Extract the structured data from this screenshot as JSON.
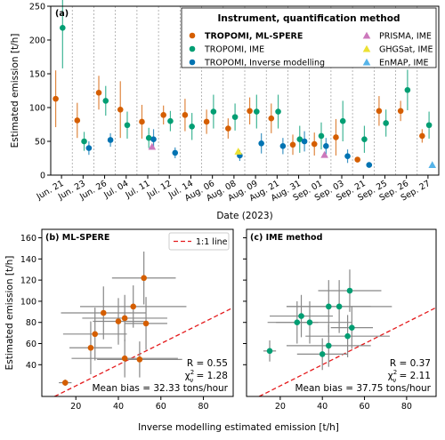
{
  "chart_data": [
    {
      "type": "errorbar",
      "panel_label": "(a)",
      "x_label": "Date (2023)",
      "y_label": "Estimated emission [t/h]",
      "categories": [
        "Jun. 21",
        "Jun. 23",
        "Jun. 26",
        "Jul. 04",
        "Jul. 11",
        "Jul. 12",
        "Jul. 14",
        "Aug. 06",
        "Aug. 08",
        "Aug. 09",
        "Aug. 21",
        "Aug. 31",
        "Sep. 01",
        "Sep. 03",
        "Sep. 21",
        "Sep. 25",
        "Sep. 26",
        "Sep. 27"
      ],
      "ylim": [
        0,
        250
      ],
      "yticks": [
        0,
        50,
        100,
        150,
        200,
        250
      ],
      "grid": "category-dashed",
      "legend_title": "Instrument, quantification method",
      "legend": "upper right",
      "series": [
        {
          "name": "TROPOMI, ML-SPERE",
          "color": "#d55e00",
          "marker": "circle",
          "values": [
            113,
            81,
            122,
            97,
            79,
            89,
            89,
            79,
            69,
            95,
            84,
            45,
            46,
            56,
            23,
            95,
            95,
            58
          ],
          "errors": [
            42,
            26,
            25,
            42,
            25,
            14,
            24,
            18,
            15,
            20,
            22,
            15,
            17,
            27,
            3,
            22,
            15,
            10
          ]
        },
        {
          "name": "TROPOMI, IME",
          "color": "#029e73",
          "marker": "circle",
          "values": [
            218,
            50,
            110,
            74,
            55,
            80,
            72,
            94,
            86,
            94,
            94,
            53,
            58,
            80,
            53,
            77,
            126,
            74
          ],
          "errors": [
            60,
            14,
            22,
            20,
            15,
            15,
            20,
            25,
            20,
            25,
            25,
            20,
            20,
            30,
            20,
            20,
            30,
            20
          ]
        },
        {
          "name": "TROPOMI, Inverse modelling",
          "color": "#0173b2",
          "marker": "circle",
          "values": [
            null,
            40,
            52,
            null,
            53,
            33,
            null,
            null,
            29,
            47,
            43,
            50,
            43,
            28,
            15,
            null,
            null,
            null
          ],
          "errors": [
            null,
            10,
            10,
            null,
            15,
            8,
            null,
            null,
            8,
            15,
            12,
            15,
            12,
            10,
            3,
            null,
            null,
            null
          ]
        },
        {
          "name": "PRISMA, IME",
          "color": "#cc78bc",
          "marker": "triangle",
          "values": [
            null,
            null,
            null,
            null,
            42,
            null,
            null,
            null,
            null,
            null,
            null,
            null,
            30,
            null,
            null,
            null,
            null,
            null
          ]
        },
        {
          "name": "GHGSat, IME",
          "color": "#ece133",
          "marker": "triangle",
          "values": [
            null,
            null,
            null,
            null,
            null,
            null,
            null,
            null,
            35,
            null,
            null,
            null,
            null,
            null,
            null,
            null,
            null,
            null
          ]
        },
        {
          "name": "EnMAP, IME",
          "color": "#56b4e9",
          "marker": "triangle",
          "values": [
            null,
            null,
            null,
            null,
            null,
            null,
            null,
            null,
            null,
            null,
            null,
            null,
            null,
            null,
            null,
            null,
            null,
            15
          ]
        }
      ]
    },
    {
      "type": "scatter",
      "panel_label": "(b) ML-SPERE",
      "x_label": "Inverse modelling estimated emission [t/h]",
      "y_label": "Estimated emission [t/h]",
      "xlim": [
        4,
        94
      ],
      "ylim": [
        10,
        168
      ],
      "xticks": [
        20,
        40,
        60,
        80
      ],
      "yticks": [
        40,
        60,
        80,
        100,
        120,
        140,
        160
      ],
      "color": "#d55e00",
      "line_name": "1:1 line",
      "line_color": "#e41a1c",
      "legend": "upper right",
      "x": [
        15,
        27,
        29,
        33,
        40,
        43,
        43,
        47,
        50,
        52,
        53
      ],
      "x_errors": [
        3,
        10,
        15,
        20,
        12,
        20,
        25,
        25,
        20,
        15,
        10
      ],
      "y": [
        23,
        56,
        69,
        89,
        81,
        84,
        46,
        95,
        45,
        122,
        79
      ],
      "y_errors": [
        3,
        25,
        25,
        25,
        22,
        22,
        18,
        20,
        17,
        25,
        25
      ],
      "stat_r": "R = 0.55",
      "stat_chi": {
        "symbol": "χ",
        "sup": "2",
        "sub": "ν",
        "text": " = 1.28"
      },
      "stat_bias": "Mean bias = 32.33 tons/hour"
    },
    {
      "type": "scatter",
      "panel_label": "(c) IME method",
      "xlim": [
        4,
        94
      ],
      "ylim": [
        10,
        168
      ],
      "xticks": [
        20,
        40,
        60,
        80
      ],
      "yticks": [
        40,
        60,
        80,
        100,
        120,
        140,
        160
      ],
      "color": "#029e73",
      "line_color": "#e41a1c",
      "x": [
        15,
        28,
        30,
        34,
        40,
        43,
        43,
        48,
        52,
        53,
        54
      ],
      "x_errors": [
        3,
        10,
        15,
        20,
        12,
        20,
        20,
        25,
        20,
        15,
        10
      ],
      "y": [
        53,
        80,
        86,
        80,
        50,
        58,
        95,
        95,
        67,
        110,
        75
      ],
      "y_errors": [
        10,
        20,
        20,
        20,
        15,
        20,
        25,
        25,
        20,
        20,
        20
      ],
      "stat_r": "R = 0.37",
      "stat_chi": {
        "symbol": "χ",
        "sup": "2",
        "sub": "ν",
        "text": " = 2.11"
      },
      "stat_bias": "Mean bias = 37.75 tons/hour"
    }
  ]
}
